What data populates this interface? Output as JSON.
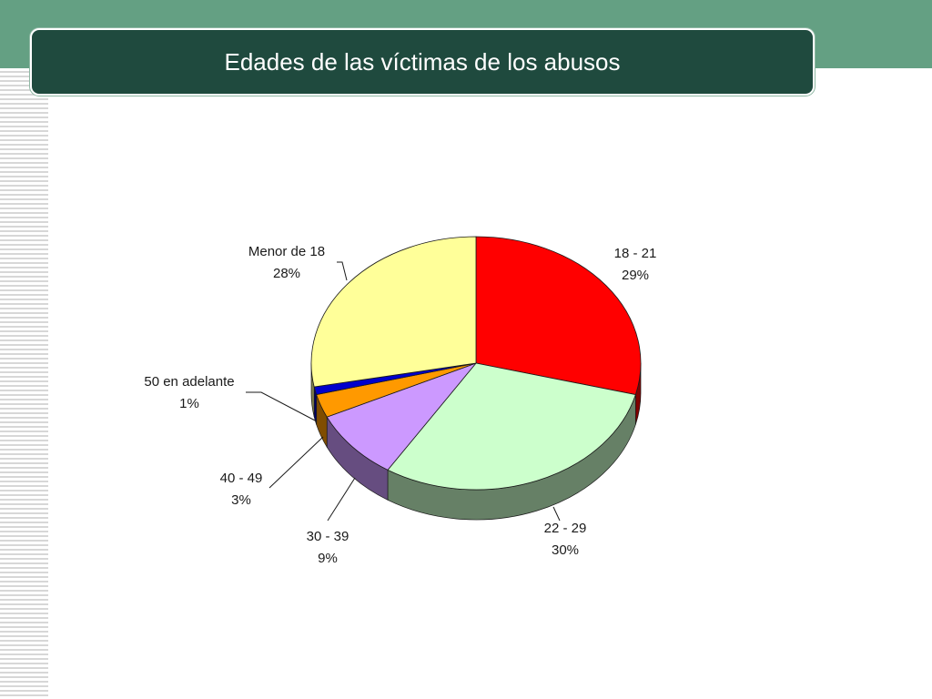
{
  "slide": {
    "title": "Edades de las víctimas de los abusos",
    "colors": {
      "header_band": "#64a083",
      "title_bar": "#1f4a3e",
      "title_text": "#ffffff"
    }
  },
  "chart_data": {
    "type": "pie",
    "style": "3d",
    "title": "",
    "slices": [
      {
        "label": "18 - 21",
        "value": 29,
        "value_label": "29%",
        "color": "#ff0000"
      },
      {
        "label": "22 - 29",
        "value": 30,
        "value_label": "30%",
        "color": "#ccffcc"
      },
      {
        "label": "30 - 39",
        "value": 9,
        "value_label": "9%",
        "color": "#cc99ff"
      },
      {
        "label": "40 - 49",
        "value": 3,
        "value_label": "3%",
        "color": "#ff9900"
      },
      {
        "label": "50 en adelante",
        "value": 1,
        "value_label": "1%",
        "color": "#0000cc"
      },
      {
        "label": "Menor de 18",
        "value": 28,
        "value_label": "28%",
        "color": "#ffff99"
      }
    ],
    "start_angle": "12 o'clock",
    "direction": "clockwise",
    "legend": "none"
  }
}
